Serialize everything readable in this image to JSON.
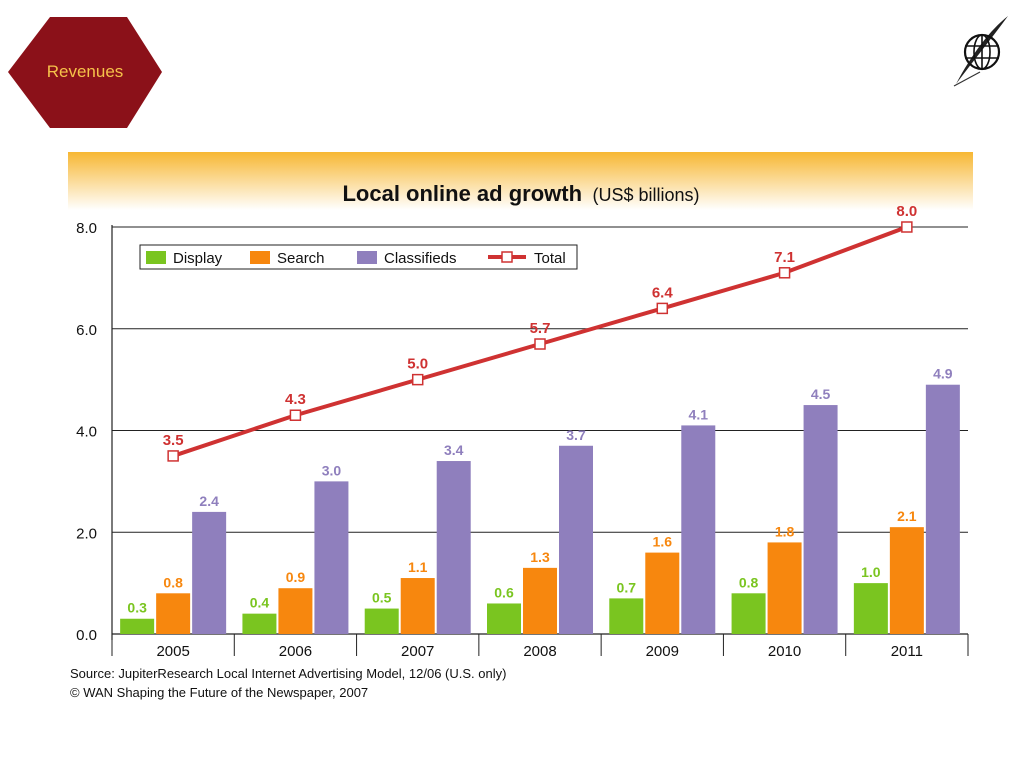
{
  "header": {
    "badge_label": "Revenues",
    "badge_color": "#8b1119",
    "badge_text_color": "#f6c24a",
    "logo_icon": "globe-quill-icon"
  },
  "chart_data": {
    "type": "bar",
    "title": "Local online ad growth",
    "subtitle": "(US$ billions)",
    "categories": [
      "2005",
      "2006",
      "2007",
      "2008",
      "2009",
      "2010",
      "2011"
    ],
    "series": [
      {
        "name": "Display",
        "type": "bar",
        "color": "#7ac520",
        "values": [
          0.3,
          0.4,
          0.5,
          0.6,
          0.7,
          0.8,
          1.0
        ]
      },
      {
        "name": "Search",
        "type": "bar",
        "color": "#f7870e",
        "values": [
          0.8,
          0.9,
          1.1,
          1.3,
          1.6,
          1.8,
          2.1
        ]
      },
      {
        "name": "Classifieds",
        "type": "bar",
        "color": "#8f7fbd",
        "values": [
          2.4,
          3.0,
          3.4,
          3.7,
          4.1,
          4.5,
          4.9
        ]
      },
      {
        "name": "Total",
        "type": "line",
        "color": "#cf3232",
        "values": [
          3.5,
          4.3,
          5.0,
          5.7,
          6.4,
          7.1,
          8.0
        ]
      }
    ],
    "value_labels": {
      "Display": [
        "0.3",
        "0.4",
        "0.5",
        "0.6",
        "0.7",
        "0.8",
        "1.0"
      ],
      "Search": [
        "0.8",
        "0.9",
        "1.1",
        "1.3",
        "1.6",
        "1.8",
        "2.1"
      ],
      "Classifieds": [
        "2.4",
        "3.0",
        "3.4",
        "3.7",
        "4.1",
        "4.5",
        "4.9"
      ],
      "Total": [
        "3.5",
        "4.3",
        "5.0",
        "5.7",
        "6.4",
        "7.1",
        "8.0"
      ]
    },
    "ylim": [
      0,
      8
    ],
    "yticks": [
      "0.0",
      "2.0",
      "4.0",
      "6.0",
      "8.0"
    ],
    "ytick_values": [
      0,
      2,
      4,
      6,
      8
    ],
    "grid": true,
    "legend_position": "top-left"
  },
  "footer": {
    "source": "Source: JupiterResearch Local Internet Advertising Model, 12/06 (U.S. only)",
    "copyright": "© WAN Shaping the Future of the Newspaper, 2007"
  }
}
